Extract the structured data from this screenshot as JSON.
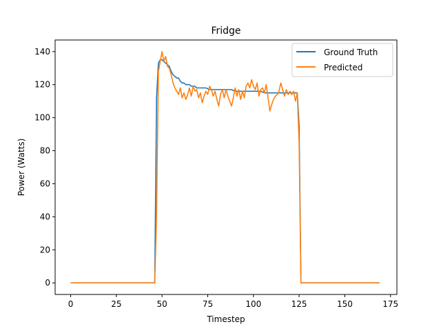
{
  "chart_data": {
    "type": "line",
    "title": "Fridge",
    "xlabel": "Timestep",
    "ylabel": "Power (Watts)",
    "xlim": [
      -8.5,
      178.5
    ],
    "ylim": [
      -7,
      147
    ],
    "xticks": [
      0,
      25,
      50,
      75,
      100,
      125,
      150,
      175
    ],
    "yticks": [
      0,
      20,
      40,
      60,
      80,
      100,
      120,
      140
    ],
    "legend_position": "top-right",
    "grid": false,
    "series": [
      {
        "name": "Ground Truth",
        "color": "#1f77b4",
        "points": [
          [
            0,
            0
          ],
          [
            46,
            0
          ],
          [
            47,
            112
          ],
          [
            48,
            133
          ],
          [
            49,
            135
          ],
          [
            50,
            135
          ],
          [
            51,
            134
          ],
          [
            52,
            133
          ],
          [
            53,
            132
          ],
          [
            54,
            131
          ],
          [
            55,
            128
          ],
          [
            56,
            126
          ],
          [
            57,
            125
          ],
          [
            58,
            124
          ],
          [
            59,
            124
          ],
          [
            60,
            122
          ],
          [
            61,
            121
          ],
          [
            62,
            121
          ],
          [
            63,
            120
          ],
          [
            64,
            120
          ],
          [
            65,
            120
          ],
          [
            66,
            119
          ],
          [
            67,
            119
          ],
          [
            68,
            119
          ],
          [
            69,
            118
          ],
          [
            70,
            118
          ],
          [
            72,
            118
          ],
          [
            74,
            118
          ],
          [
            76,
            117
          ],
          [
            78,
            117
          ],
          [
            80,
            117
          ],
          [
            82,
            117
          ],
          [
            84,
            117
          ],
          [
            86,
            117
          ],
          [
            88,
            117
          ],
          [
            90,
            116
          ],
          [
            92,
            116
          ],
          [
            94,
            116
          ],
          [
            96,
            116
          ],
          [
            98,
            116
          ],
          [
            100,
            116
          ],
          [
            102,
            116
          ],
          [
            104,
            116
          ],
          [
            106,
            115
          ],
          [
            108,
            115
          ],
          [
            110,
            115
          ],
          [
            112,
            115
          ],
          [
            114,
            115
          ],
          [
            116,
            115
          ],
          [
            118,
            115
          ],
          [
            120,
            115
          ],
          [
            122,
            115
          ],
          [
            124,
            115
          ],
          [
            125,
            95
          ],
          [
            126,
            0
          ],
          [
            169,
            0
          ]
        ]
      },
      {
        "name": "Predicted",
        "color": "#ff7f0e",
        "points": [
          [
            0,
            0
          ],
          [
            46,
            0
          ],
          [
            47,
            40
          ],
          [
            48,
            128
          ],
          [
            49,
            134
          ],
          [
            50,
            140
          ],
          [
            51,
            134
          ],
          [
            52,
            137
          ],
          [
            53,
            131
          ],
          [
            54,
            130
          ],
          [
            55,
            126
          ],
          [
            56,
            121
          ],
          [
            57,
            118
          ],
          [
            58,
            116
          ],
          [
            59,
            114
          ],
          [
            60,
            118
          ],
          [
            61,
            112
          ],
          [
            62,
            115
          ],
          [
            63,
            111
          ],
          [
            64,
            114
          ],
          [
            65,
            118
          ],
          [
            66,
            113
          ],
          [
            67,
            119
          ],
          [
            68,
            116
          ],
          [
            69,
            117
          ],
          [
            70,
            112
          ],
          [
            71,
            115
          ],
          [
            72,
            109
          ],
          [
            73,
            113
          ],
          [
            74,
            116
          ],
          [
            75,
            114
          ],
          [
            76,
            119
          ],
          [
            77,
            117
          ],
          [
            78,
            113
          ],
          [
            79,
            116
          ],
          [
            80,
            111
          ],
          [
            81,
            107
          ],
          [
            82,
            114
          ],
          [
            83,
            117
          ],
          [
            84,
            112
          ],
          [
            85,
            117
          ],
          [
            86,
            113
          ],
          [
            87,
            110
          ],
          [
            88,
            107
          ],
          [
            89,
            112
          ],
          [
            90,
            118
          ],
          [
            91,
            113
          ],
          [
            92,
            117
          ],
          [
            93,
            111
          ],
          [
            94,
            116
          ],
          [
            95,
            112
          ],
          [
            96,
            119
          ],
          [
            97,
            121
          ],
          [
            98,
            118
          ],
          [
            99,
            123
          ],
          [
            100,
            119
          ],
          [
            101,
            117
          ],
          [
            102,
            121
          ],
          [
            103,
            113
          ],
          [
            104,
            117
          ],
          [
            105,
            118
          ],
          [
            106,
            115
          ],
          [
            107,
            120
          ],
          [
            108,
            112
          ],
          [
            109,
            104
          ],
          [
            110,
            108
          ],
          [
            111,
            111
          ],
          [
            112,
            113
          ],
          [
            113,
            114
          ],
          [
            114,
            116
          ],
          [
            115,
            121
          ],
          [
            116,
            117
          ],
          [
            117,
            113
          ],
          [
            118,
            117
          ],
          [
            119,
            114
          ],
          [
            120,
            116
          ],
          [
            121,
            114
          ],
          [
            122,
            116
          ],
          [
            123,
            110
          ],
          [
            124,
            115
          ],
          [
            125,
            85
          ],
          [
            126,
            0
          ],
          [
            169,
            0
          ]
        ]
      }
    ]
  }
}
